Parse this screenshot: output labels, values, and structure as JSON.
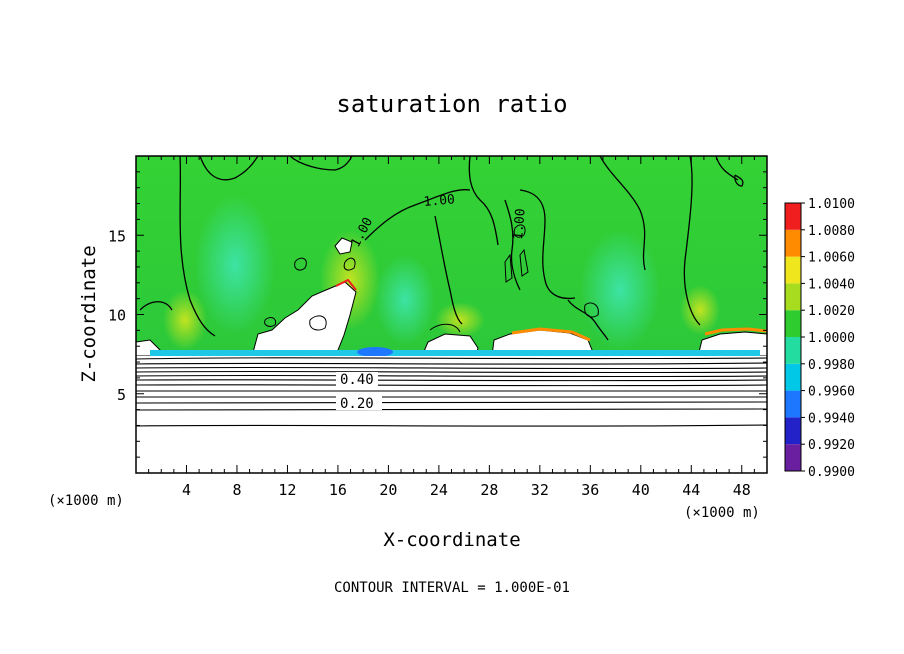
{
  "chart_data": {
    "type": "heatmap",
    "title": "saturation ratio",
    "xlabel": "X-coordinate",
    "ylabel": "Z-coordinate",
    "x_unit_label": "(×1000 m)",
    "y_unit_label": "(×1000 m)",
    "footer": "CONTOUR INTERVAL = 1.000E-01",
    "xlim": [
      0,
      50
    ],
    "ylim": [
      0,
      20
    ],
    "x_ticks": [
      4,
      8,
      12,
      16,
      20,
      24,
      28,
      32,
      36,
      40,
      44,
      48
    ],
    "y_ticks": [
      5,
      10,
      15
    ],
    "colorbar": {
      "levels": [
        "0.9900",
        "0.9920",
        "0.9940",
        "0.9960",
        "0.9980",
        "1.0000",
        "1.0020",
        "1.0040",
        "1.0060",
        "1.0080",
        "1.0100"
      ],
      "colors": [
        "#6a1fa0",
        "#2222c8",
        "#1e78ff",
        "#00c8e6",
        "#22dca0",
        "#2ecc2e",
        "#a8dc1e",
        "#f0e61e",
        "#ff8c00",
        "#f01e1e",
        "#ff9a9a"
      ]
    },
    "contour_labels": [
      {
        "text": "1.00",
        "x": 16.6,
        "z": 15.3
      },
      {
        "text": "1.00",
        "x": 24.0,
        "z": 16.6
      },
      {
        "text": "1.00",
        "x": 30.2,
        "z": 15.5
      },
      {
        "text": "0.40",
        "x": 17.6,
        "z": 5.8
      },
      {
        "text": "0.20",
        "x": 17.4,
        "z": 4.4
      }
    ],
    "cloud_base_z": 7.6,
    "lower_contour_levels_z": [
      7.4,
      7.1,
      6.9,
      6.7,
      6.5,
      6.3,
      6.0,
      5.7,
      5.4,
      5.1,
      4.7,
      4.3,
      3.0
    ]
  }
}
